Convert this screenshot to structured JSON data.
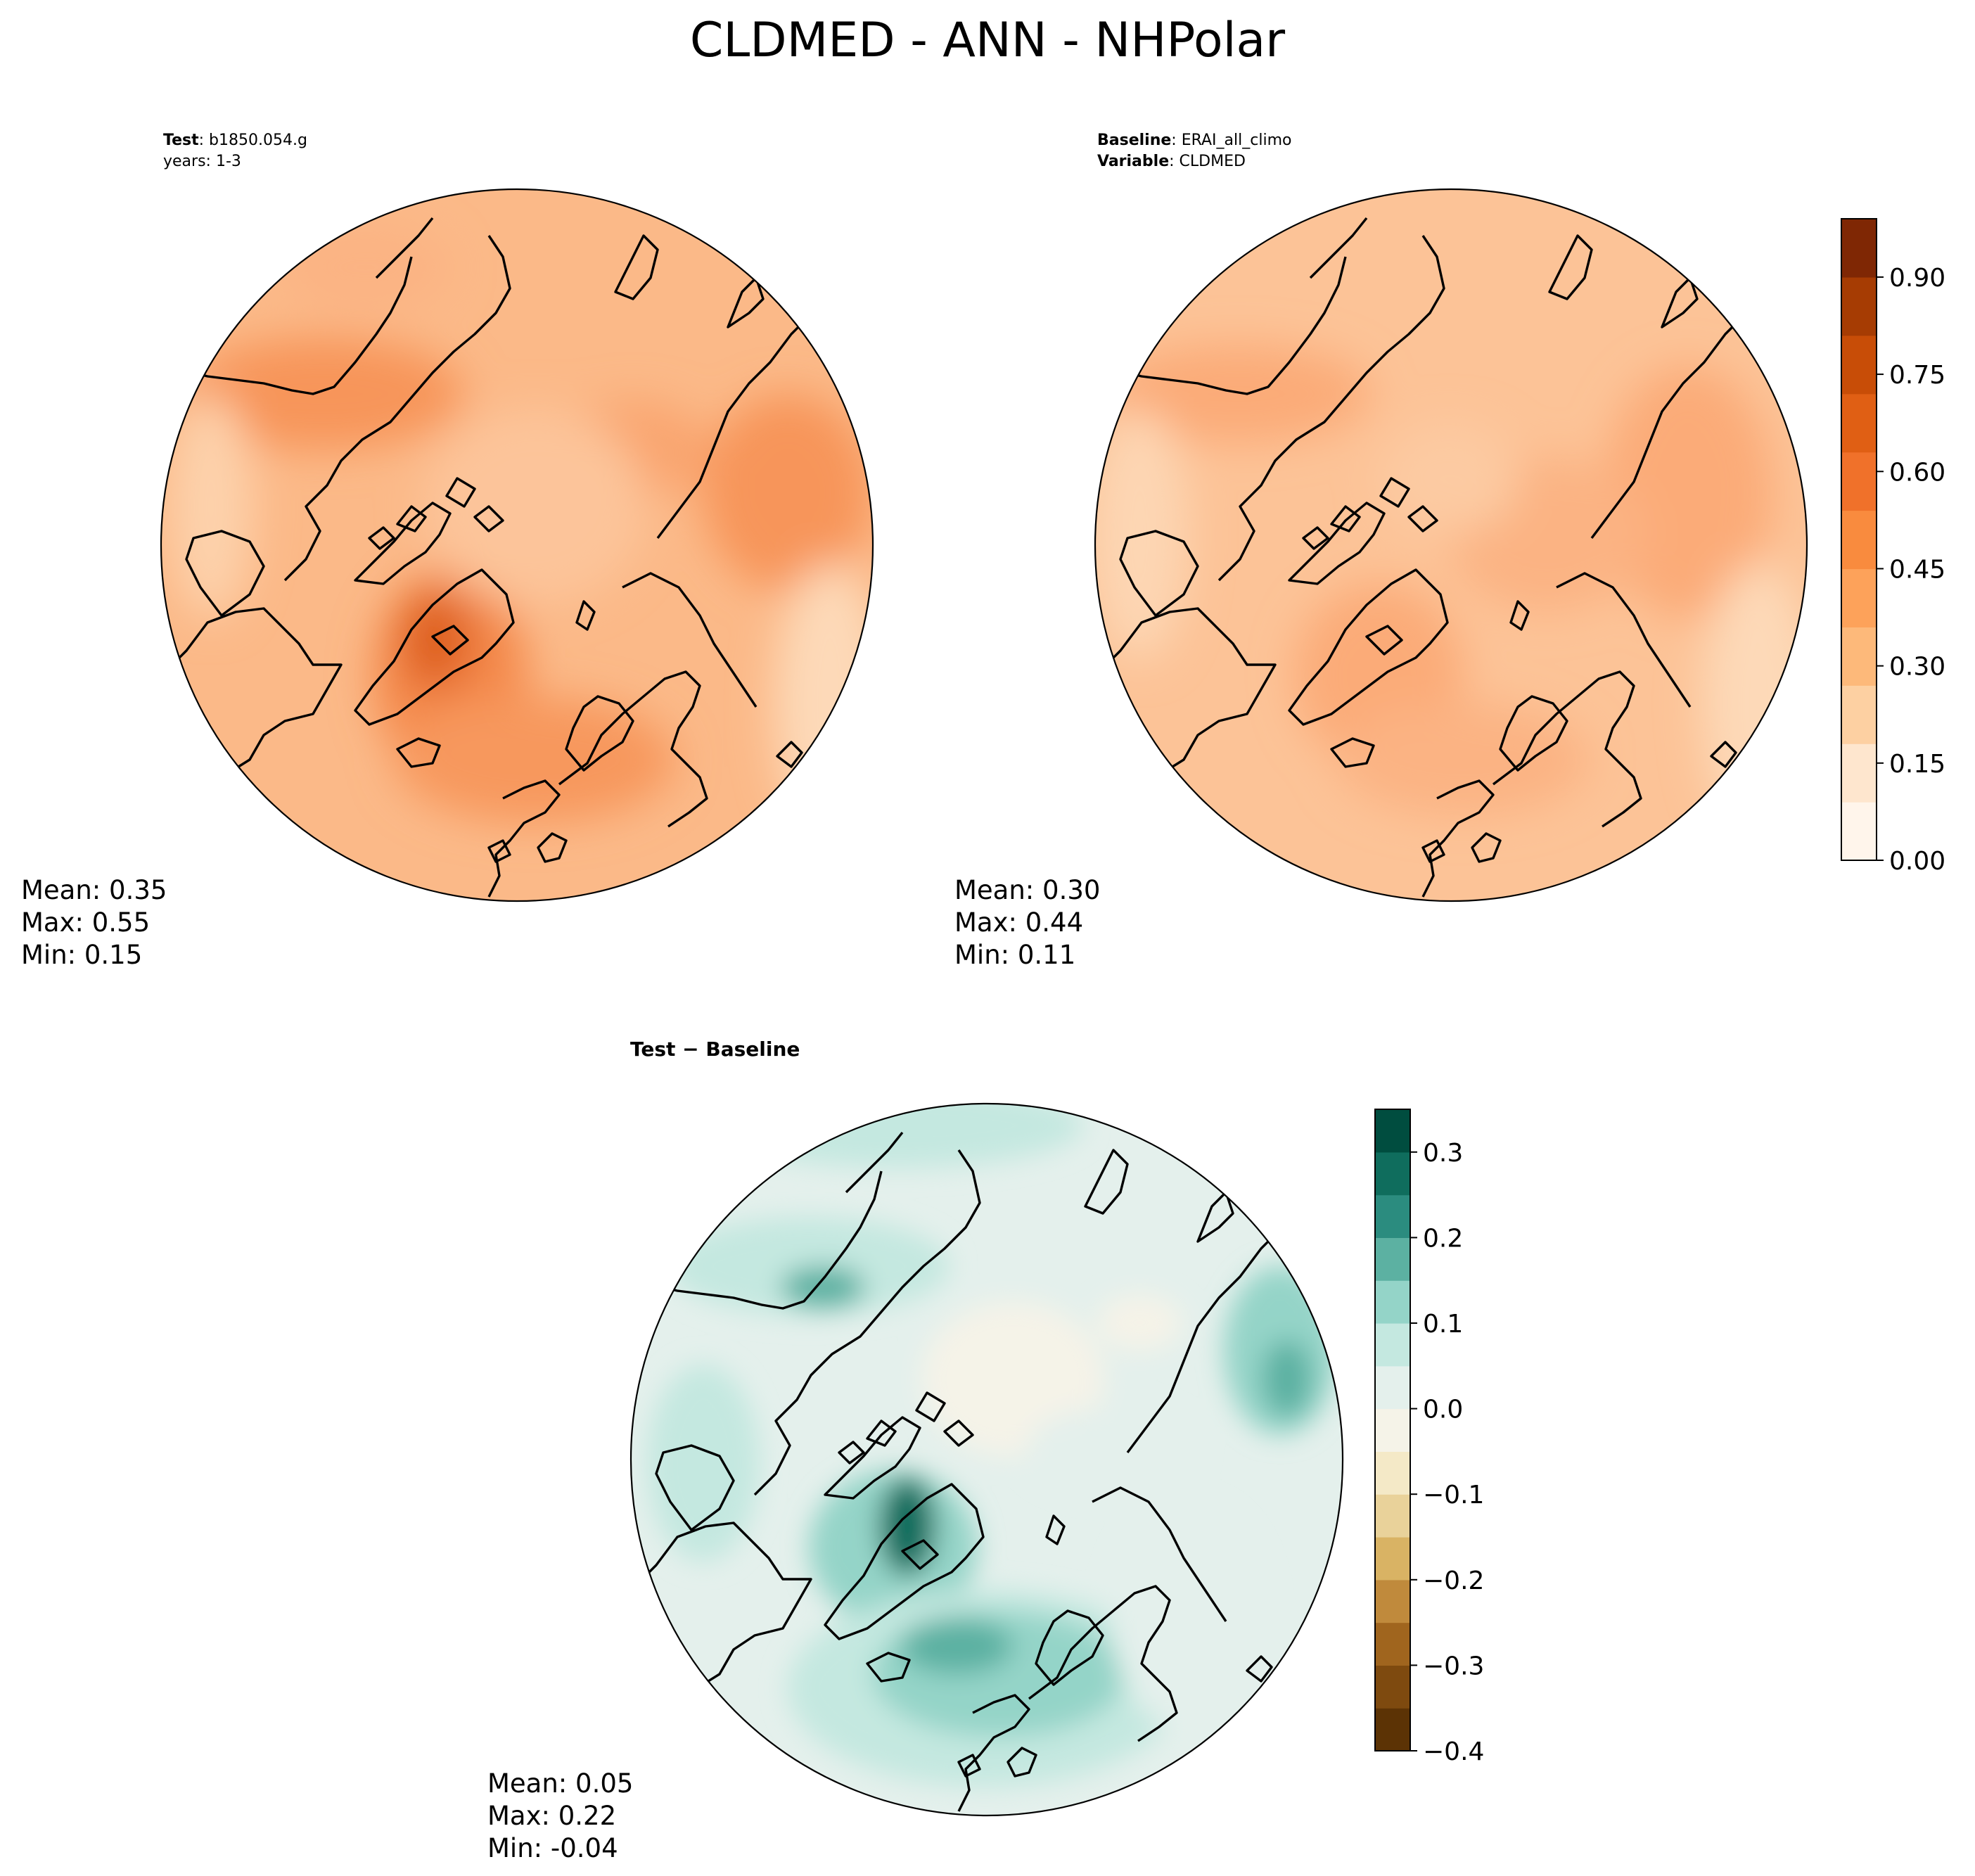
{
  "figure": {
    "title": "CLDMED - ANN - NHPolar"
  },
  "test_panel": {
    "label_bold": "Test",
    "label_value": "b1850.054.g",
    "years": "years: 1-3",
    "stats": {
      "mean": "Mean:  0.35",
      "max": "Max:  0.55",
      "min": "Min:  0.15"
    }
  },
  "baseline_panel": {
    "label_bold": "Baseline",
    "label_value": "ERAI_all_climo",
    "variable_bold": "Variable",
    "variable_value": "CLDMED",
    "stats": {
      "mean": "Mean:  0.30",
      "max": "Max:  0.44",
      "min": "Min:  0.11"
    }
  },
  "diff_panel": {
    "title": "Test − Baseline",
    "stats": {
      "mean": "Mean:  0.05",
      "max": "Max:  0.22",
      "min": "Min: -0.04"
    }
  },
  "colorbar_main": {
    "colormap": "Oranges",
    "range": [
      0.0,
      0.99
    ],
    "ticks": [
      "0.00",
      "0.15",
      "0.30",
      "0.45",
      "0.60",
      "0.75",
      "0.90"
    ],
    "tick_values": [
      0.0,
      0.15,
      0.3,
      0.45,
      0.6,
      0.75,
      0.9
    ],
    "colors": [
      "#fff5eb",
      "#fee6ce",
      "#fdd0a2",
      "#fdb97a",
      "#fda25a",
      "#f98b3e",
      "#f0712a",
      "#e05f14",
      "#c84d07",
      "#a63c03",
      "#7f2704"
    ]
  },
  "colorbar_diff": {
    "colormap": "BrBG",
    "range": [
      -0.4,
      0.35
    ],
    "ticks": [
      "−0.4",
      "−0.3",
      "−0.2",
      "−0.1",
      "0.0",
      "0.1",
      "0.2",
      "0.3"
    ],
    "tick_values": [
      -0.4,
      -0.3,
      -0.2,
      -0.1,
      0.0,
      0.1,
      0.2,
      0.3
    ],
    "colors": [
      "#5c3305",
      "#7e4a0f",
      "#a0651e",
      "#c08a3c",
      "#d9b364",
      "#e9d29a",
      "#f4e9c7",
      "#f5f3e8",
      "#e4f0ec",
      "#c4e8e0",
      "#94d4c8",
      "#5cb1a2",
      "#2b8c7f",
      "#0f6d5d",
      "#004d3f"
    ]
  },
  "chart_data": [
    {
      "type": "heatmap",
      "title": "Test",
      "projection": "North polar stereographic",
      "variable": "CLDMED",
      "colormap": "Oranges",
      "mean": 0.35,
      "max": 0.55,
      "min": 0.15
    },
    {
      "type": "heatmap",
      "title": "Baseline",
      "projection": "North polar stereographic",
      "variable": "CLDMED",
      "colormap": "Oranges",
      "mean": 0.3,
      "max": 0.44,
      "min": 0.11
    },
    {
      "type": "heatmap",
      "title": "Test − Baseline",
      "projection": "North polar stereographic",
      "variable": "CLDMED",
      "colormap": "BrBG",
      "mean": 0.05,
      "max": 0.22,
      "min": -0.04
    }
  ]
}
